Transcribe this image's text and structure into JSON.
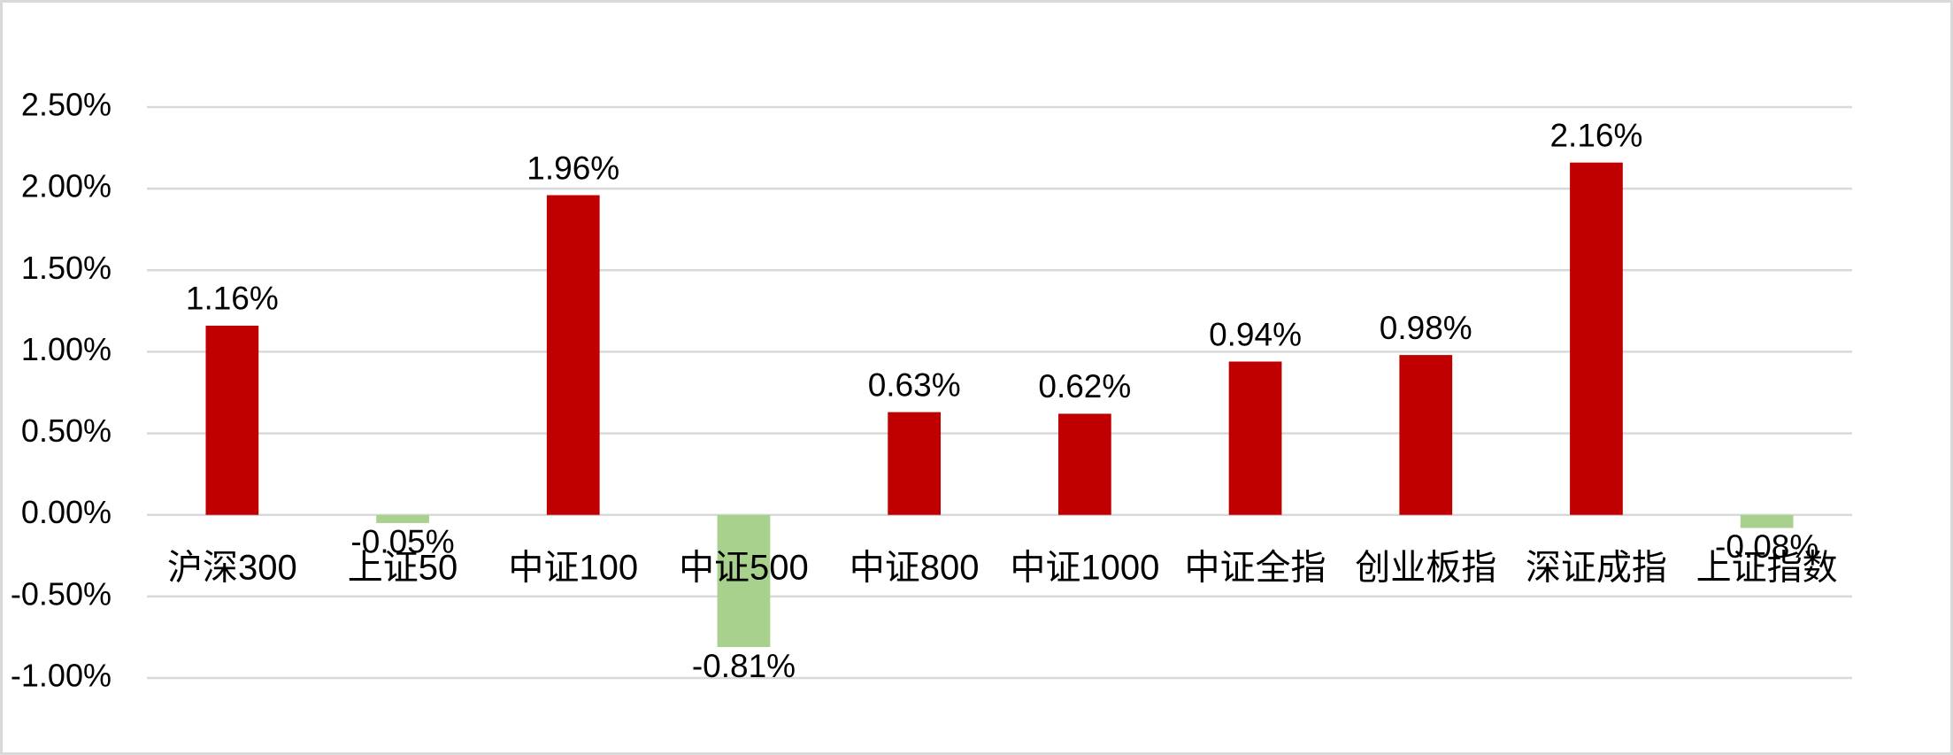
{
  "chart_data": {
    "type": "bar",
    "categories": [
      "沪深300",
      "上证50",
      "中证100",
      "中证500",
      "中证800",
      "中证1000",
      "中证全指",
      "创业板指",
      "深证成指",
      "上证指数"
    ],
    "values": [
      1.16,
      -0.05,
      1.96,
      -0.81,
      0.63,
      0.62,
      0.94,
      0.98,
      2.16,
      -0.08
    ],
    "value_labels": [
      "1.16%",
      "-0.05%",
      "1.96%",
      "-0.81%",
      "0.63%",
      "0.62%",
      "0.94%",
      "0.98%",
      "2.16%",
      "-0.08%"
    ],
    "positive_color": "#c00000",
    "negative_color": "#a9d18e",
    "ylim": [
      -1,
      2.5
    ],
    "yticks": [
      {
        "value": -1,
        "label": "-1.00%"
      },
      {
        "value": -0.5,
        "label": "-0.50%"
      },
      {
        "value": 0,
        "label": "0.00%"
      },
      {
        "value": 0.5,
        "label": "0.50%"
      },
      {
        "value": 1,
        "label": "1.00%"
      },
      {
        "value": 1.5,
        "label": "1.50%"
      },
      {
        "value": 2,
        "label": "2.00%"
      },
      {
        "value": 2.5,
        "label": "2.50%"
      }
    ],
    "grid": true
  }
}
